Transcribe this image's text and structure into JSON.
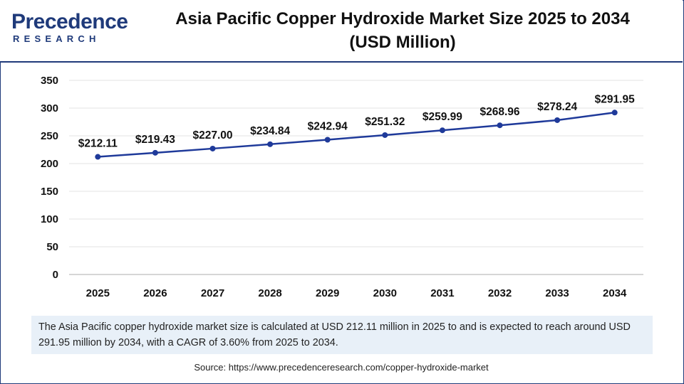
{
  "logo": {
    "brand_top": "Precedence",
    "brand_bottom": "RESEARCH"
  },
  "title_line1": "Asia Pacific Copper Hydroxide Market Size 2025 to 2034",
  "title_line2": "(USD Million)",
  "summary": "The Asia Pacific copper hydroxide market size is calculated at USD 212.11 million in 2025 to and is expected to reach around USD 291.95 million by 2034, with a CAGR of 3.60% from 2025 to 2034.",
  "source": "Source: https://www.precedenceresearch.com/copper-hydroxide-market",
  "colors": {
    "line": "#1f3a9a",
    "brand": "#1f3a7a",
    "summary_bg": "#e8f0f8"
  },
  "chart_data": {
    "type": "line",
    "title": "Asia Pacific Copper Hydroxide Market Size 2025 to 2034 (USD Million)",
    "categories": [
      "2025",
      "2026",
      "2027",
      "2028",
      "2029",
      "2030",
      "2031",
      "2032",
      "2033",
      "2034"
    ],
    "series": [
      {
        "values": [
          212.11,
          219.43,
          227.0,
          234.84,
          242.94,
          251.32,
          259.99,
          268.96,
          278.24,
          291.95
        ],
        "labels": [
          "$212.11",
          "$219.43",
          "$227.00",
          "$234.84",
          "$242.94",
          "$251.32",
          "$259.99",
          "$268.96",
          "$278.24",
          "$291.95"
        ]
      }
    ],
    "ylim": [
      0,
      350
    ],
    "yticks": [
      "0",
      "50",
      "100",
      "150",
      "200",
      "250",
      "300",
      "350"
    ],
    "xlabel": "",
    "ylabel": "",
    "grid": true,
    "legend": "none"
  }
}
